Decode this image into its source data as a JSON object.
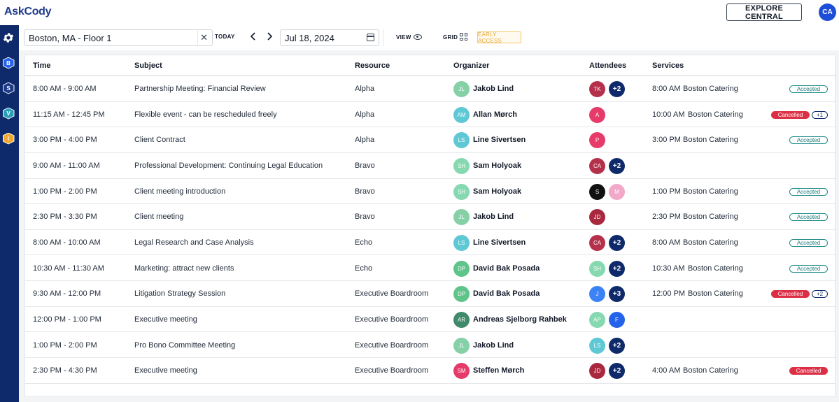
{
  "app": {
    "logo": "AskCody",
    "explore_label": "EXPLORE CENTRAL",
    "user_initials": "CA",
    "user_color": "#1d4ed8"
  },
  "sidebar": {
    "items": [
      {
        "icon": "gear-icon"
      },
      {
        "letter": "B",
        "color": "#2563eb"
      },
      {
        "letter": "S",
        "color": "#1e3a8a"
      },
      {
        "letter": "V",
        "color": "#2a9fb8"
      },
      {
        "letter": "I",
        "color": "#f0a92e"
      }
    ]
  },
  "toolbar": {
    "location": "Boston, MA - Floor 1",
    "today_label": "TODAY",
    "prev_label": "‹",
    "next_label": "›",
    "date": "Jul 18, 2024",
    "view_label": "VIEW",
    "grid_label": "GRID",
    "early_access_label": "EARLY ACCESS"
  },
  "table": {
    "headers": {
      "time": "Time",
      "subject": "Subject",
      "resource": "Resource",
      "organizer": "Organizer",
      "attendees": "Attendees",
      "services": "Services"
    },
    "rows": [
      {
        "time": "8:00 AM - 9:00 AM",
        "subject": "Partnership Meeting: Financial Review",
        "resource": "Alpha",
        "organizer": {
          "initials": "JL",
          "name": "Jakob Lind",
          "color": "#86d0a8"
        },
        "attendees": [
          {
            "initials": "TK",
            "color": "#b5304a"
          }
        ],
        "attendees_more": "+2",
        "service": {
          "time": "8:00 AM",
          "name": "Boston Catering",
          "status": "Accepted",
          "status_type": "accepted",
          "more": ""
        }
      },
      {
        "time": "11:15 AM - 12:45 PM",
        "subject": "Flexible event - can be rescheduled freely",
        "resource": "Alpha",
        "organizer": {
          "initials": "AM",
          "name": "Allan Mørch",
          "color": "#5ec8d4"
        },
        "attendees": [
          {
            "initials": "A",
            "color": "#e63a6a"
          }
        ],
        "attendees_more": "",
        "service": {
          "time": "10:00 AM",
          "name": "Boston Catering",
          "status": "Cancelled",
          "status_type": "cancelled",
          "more": "+1"
        }
      },
      {
        "time": "3:00 PM - 4:00 PM",
        "subject": "Client Contract",
        "resource": "Alpha",
        "organizer": {
          "initials": "LS",
          "name": "Line Sivertsen",
          "color": "#5ec8d4"
        },
        "attendees": [
          {
            "initials": "P",
            "color": "#e63a6a"
          }
        ],
        "attendees_more": "",
        "service": {
          "time": "3:00 PM",
          "name": "Boston Catering",
          "status": "Accepted",
          "status_type": "accepted",
          "more": ""
        }
      },
      {
        "time": "9:00 AM - 11:00 AM",
        "subject": "Professional Development: Continuing Legal Education",
        "resource": "Bravo",
        "organizer": {
          "initials": "SH",
          "name": "Sam Holyoak",
          "color": "#86d8b0"
        },
        "attendees": [
          {
            "initials": "CA",
            "color": "#b5304a"
          }
        ],
        "attendees_more": "+2",
        "service": {
          "time": "",
          "name": "",
          "status": "",
          "status_type": "",
          "more": ""
        }
      },
      {
        "time": "1:00 PM - 2:00 PM",
        "subject": "Client meeting introduction",
        "resource": "Bravo",
        "organizer": {
          "initials": "SH",
          "name": "Sam Holyoak",
          "color": "#86d8b0"
        },
        "attendees": [
          {
            "initials": "S",
            "color": "#111111"
          },
          {
            "initials": "M",
            "color": "#f2a8c8"
          }
        ],
        "attendees_more": "",
        "service": {
          "time": "1:00 PM",
          "name": "Boston Catering",
          "status": "Accepted",
          "status_type": "accepted",
          "more": ""
        }
      },
      {
        "time": "2:30 PM - 3:30 PM",
        "subject": "Client meeting",
        "resource": "Bravo",
        "organizer": {
          "initials": "JL",
          "name": "Jakob Lind",
          "color": "#86d0a8"
        },
        "attendees": [
          {
            "initials": "JD",
            "color": "#a8283e"
          }
        ],
        "attendees_more": "",
        "service": {
          "time": "2:30 PM",
          "name": "Boston Catering",
          "status": "Accepted",
          "status_type": "accepted",
          "more": ""
        }
      },
      {
        "time": "8:00 AM - 10:00 AM",
        "subject": "Legal Research and Case Analysis",
        "resource": "Echo",
        "organizer": {
          "initials": "LS",
          "name": "Line Sivertsen",
          "color": "#5ec8d4"
        },
        "attendees": [
          {
            "initials": "CA",
            "color": "#b5304a"
          }
        ],
        "attendees_more": "+2",
        "service": {
          "time": "8:00 AM",
          "name": "Boston Catering",
          "status": "Accepted",
          "status_type": "accepted",
          "more": ""
        }
      },
      {
        "time": "10:30 AM - 11:30 AM",
        "subject": "Marketing: attract new clients",
        "resource": "Echo",
        "organizer": {
          "initials": "DP",
          "name": "David Bak Posada",
          "color": "#5ec48a"
        },
        "attendees": [
          {
            "initials": "SH",
            "color": "#86d8b0"
          }
        ],
        "attendees_more": "+2",
        "service": {
          "time": "10:30 AM",
          "name": "Boston Catering",
          "status": "Accepted",
          "status_type": "accepted",
          "more": ""
        }
      },
      {
        "time": "9:30 AM - 12:00 PM",
        "subject": "Litigation Strategy Session",
        "resource": "Executive Boardroom",
        "organizer": {
          "initials": "DP",
          "name": "David Bak Posada",
          "color": "#5ec48a"
        },
        "attendees": [
          {
            "initials": "J",
            "color": "#3b82f6"
          }
        ],
        "attendees_more": "+3",
        "service": {
          "time": "12:00 PM",
          "name": "Boston Catering",
          "status": "Cancelled",
          "status_type": "cancelled",
          "more": "+2"
        }
      },
      {
        "time": "12:00 PM - 1:00 PM",
        "subject": "Executive meeting",
        "resource": "Executive Boardroom",
        "organizer": {
          "initials": "AR",
          "name": "Andreas Sjelborg Rahbek",
          "color": "#3f8a6a"
        },
        "attendees": [
          {
            "initials": "AP",
            "color": "#86d8b0"
          },
          {
            "initials": "F",
            "color": "#2563eb"
          }
        ],
        "attendees_more": "",
        "service": {
          "time": "",
          "name": "",
          "status": "",
          "status_type": "",
          "more": ""
        }
      },
      {
        "time": "1:00 PM - 2:00 PM",
        "subject": "Pro Bono Committee Meeting",
        "resource": "Executive Boardroom",
        "organizer": {
          "initials": "JL",
          "name": "Jakob Lind",
          "color": "#86d0a8"
        },
        "attendees": [
          {
            "initials": "LS",
            "color": "#5ec8d4"
          }
        ],
        "attendees_more": "+2",
        "service": {
          "time": "",
          "name": "",
          "status": "",
          "status_type": "",
          "more": ""
        }
      },
      {
        "time": "2:30 PM - 4:30 PM",
        "subject": "Executive meeting",
        "resource": "Executive Boardroom",
        "organizer": {
          "initials": "SM",
          "name": "Steffen Mørch",
          "color": "#e63a6a"
        },
        "attendees": [
          {
            "initials": "JD",
            "color": "#a8283e"
          }
        ],
        "attendees_more": "+2",
        "service": {
          "time": "4:00 AM",
          "name": "Boston Catering",
          "status": "Cancelled",
          "status_type": "cancelled",
          "more": ""
        }
      }
    ]
  }
}
